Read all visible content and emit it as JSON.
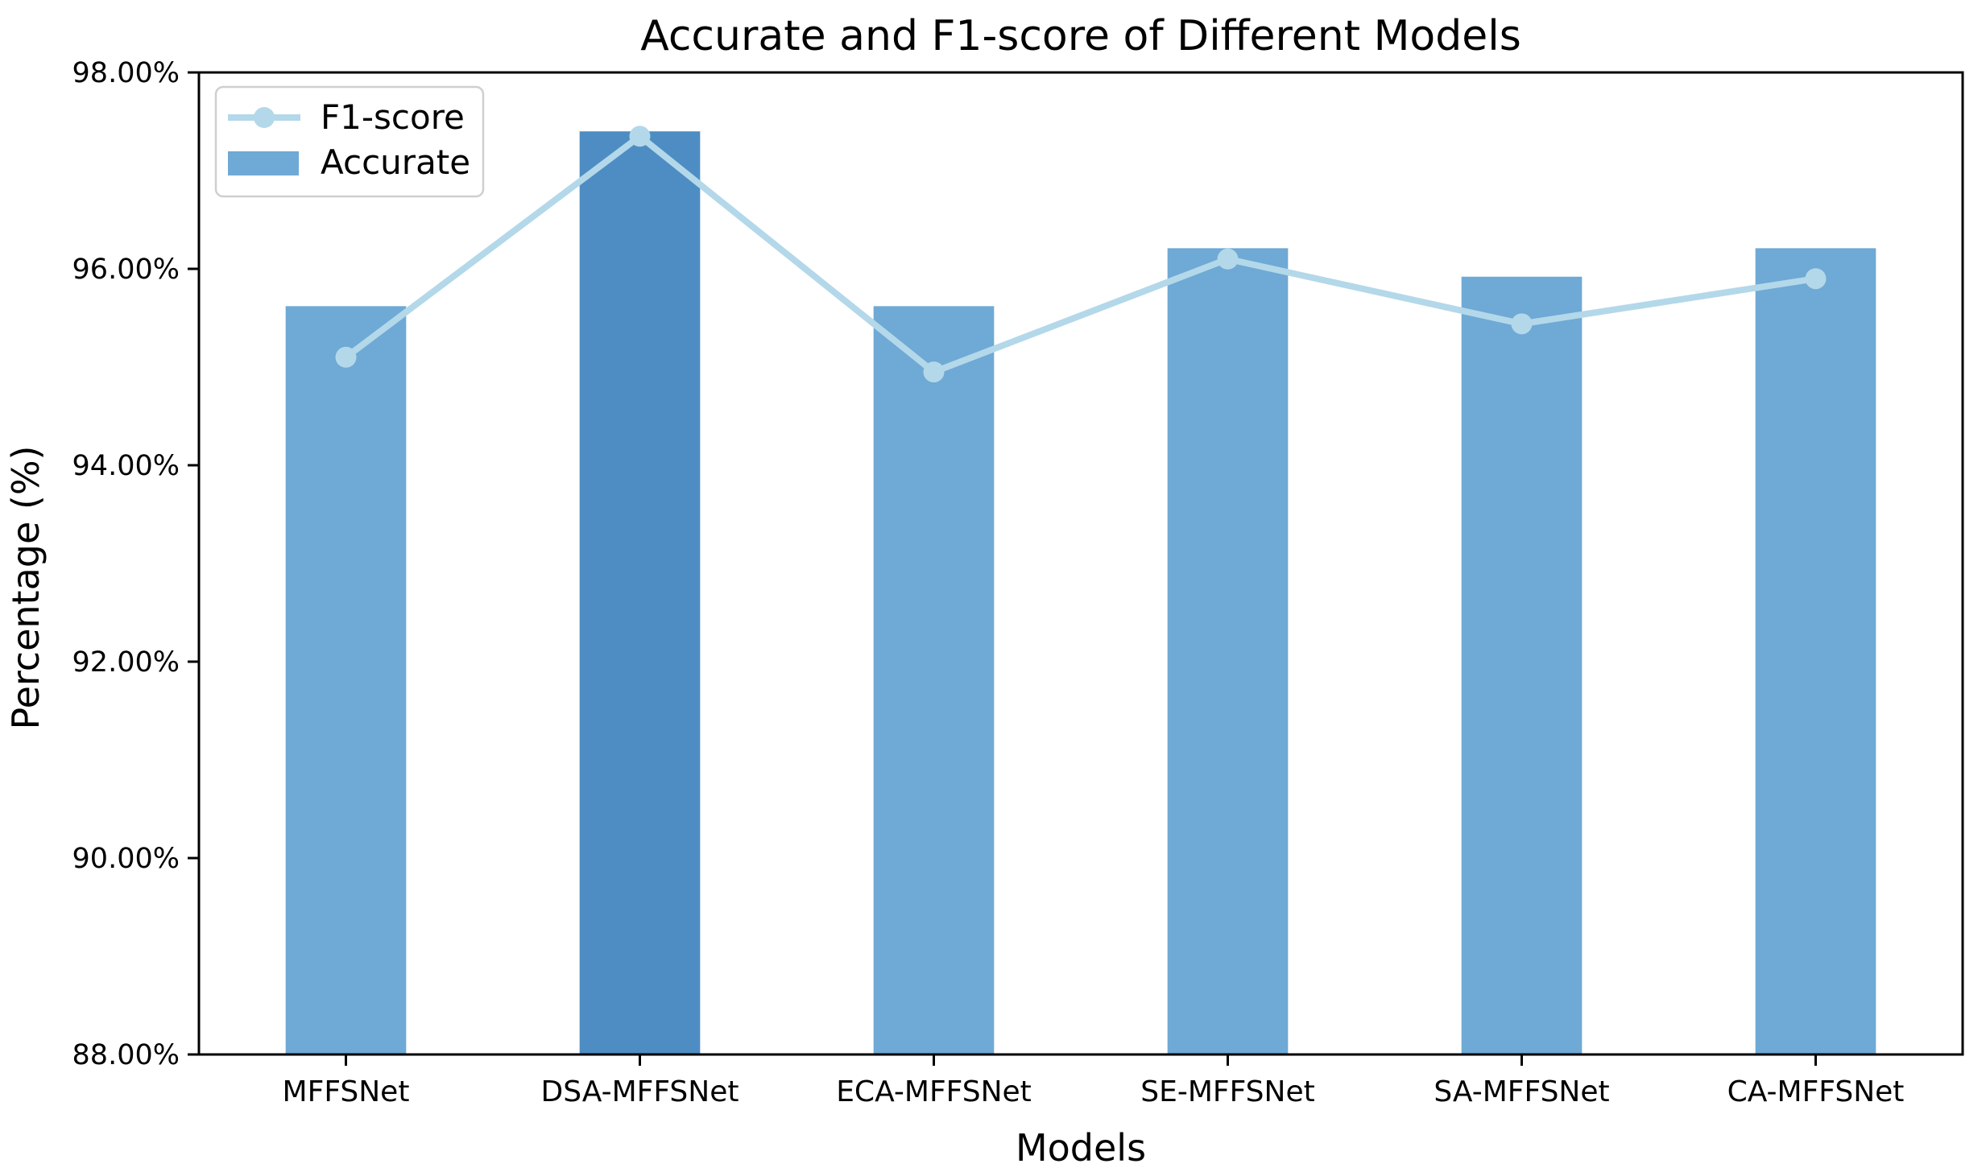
{
  "figure": {
    "background": "#ffffff",
    "text_color": "#000000",
    "spine_color": "#000000"
  },
  "chart_data": {
    "type": "bar",
    "title": "Accurate and F1-score of Different Models",
    "xlabel": "Models",
    "ylabel": "Percentage (%)",
    "categories": [
      "MFFSNet",
      "DSA-MFFSNet",
      "ECA-MFFSNet",
      "SE-MFFSNet",
      "SA-MFFSNet",
      "CA-MFFSNet"
    ],
    "series": [
      {
        "name": "F1-score",
        "type": "line",
        "values": [
          95.1,
          97.35,
          94.95,
          96.1,
          95.44,
          95.9
        ],
        "color": "#b3d8e9",
        "marker": "circle"
      },
      {
        "name": "Accurate",
        "type": "bar",
        "values": [
          95.62,
          97.4,
          95.62,
          96.21,
          95.92,
          96.21
        ],
        "color": "#6fa9d5",
        "highlight_color": "#4e8dc3",
        "highlight_index": 1
      }
    ],
    "ylim": [
      88,
      98
    ],
    "yticks": {
      "values": [
        98,
        96,
        94,
        92,
        90,
        88
      ],
      "labels": [
        "98.00%",
        "96.00%",
        "94.00%",
        "92.00%",
        "90.00%",
        "88.00%"
      ]
    },
    "grid": false,
    "legend_position": "upper-left",
    "bar_width_fraction": 0.41
  }
}
